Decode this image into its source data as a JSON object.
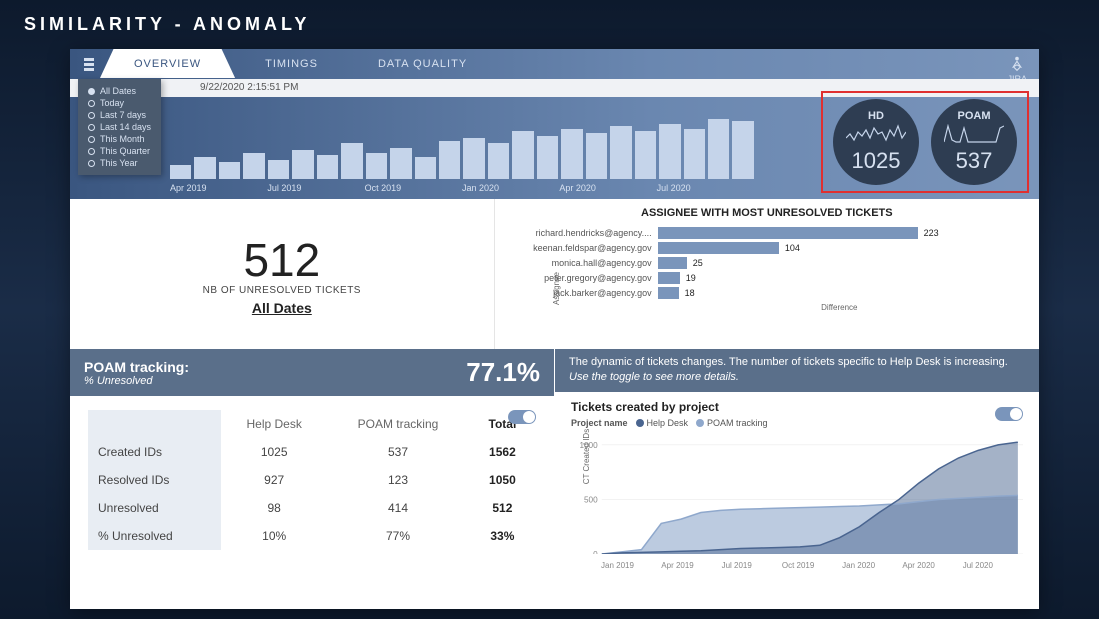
{
  "slide_title": "SIMILARITY - ANOMALY",
  "tabs": {
    "active": "OVERVIEW",
    "items": [
      "OVERVIEW",
      "TIMINGS",
      "DATA QUALITY"
    ]
  },
  "logo_text": "JIRA",
  "date_filter": {
    "selected": "All Dates",
    "options": [
      "All Dates",
      "Today",
      "Last 7 days",
      "Last 14 days",
      "This Month",
      "This Quarter",
      "This Year"
    ]
  },
  "timestamp": "9/22/2020 2:15:51 PM",
  "timeline": {
    "bars": [
      12,
      18,
      14,
      22,
      16,
      24,
      20,
      30,
      22,
      26,
      18,
      32,
      34,
      30,
      40,
      36,
      42,
      38,
      44,
      40,
      46,
      42,
      50,
      48
    ],
    "labels": [
      "Apr 2019",
      "Jul 2019",
      "Oct 2019",
      "Jan 2020",
      "Apr 2020",
      "Jul 2020"
    ]
  },
  "circles": {
    "highlight_color": "#e03030",
    "circle_bg": "#2e3d52",
    "items": [
      {
        "label": "HD",
        "value": "1025",
        "spark": [
          8,
          12,
          6,
          14,
          10,
          16,
          8,
          18,
          12,
          14,
          6,
          16,
          10,
          20,
          8,
          14
        ]
      },
      {
        "label": "POAM",
        "value": "537",
        "spark": [
          4,
          20,
          6,
          4,
          4,
          18,
          4,
          4,
          4,
          4,
          4,
          4,
          4,
          4,
          18,
          20
        ]
      }
    ]
  },
  "kpi": {
    "value": "512",
    "label": "NB OF UNRESOLVED TICKETS",
    "range": "All Dates"
  },
  "assignee_chart": {
    "title": "ASSIGNEE WITH MOST UNRESOLVED TICKETS",
    "y_label": "Assignee",
    "x_label": "Difference",
    "bar_color": "#7a95bb",
    "max": 223,
    "rows": [
      {
        "name": "richard.hendricks@agency....",
        "value": 223
      },
      {
        "name": "keenan.feldspar@agency.gov",
        "value": 104
      },
      {
        "name": "monica.hall@agency.gov",
        "value": 25
      },
      {
        "name": "peter.gregory@agency.gov",
        "value": 19
      },
      {
        "name": "jack.barker@agency.gov",
        "value": 18
      }
    ]
  },
  "poam_banner": {
    "title": "POAM tracking:",
    "sub": "% Unresolved",
    "pct": "77.1%"
  },
  "summary_table": {
    "columns": [
      "",
      "Help Desk",
      "POAM tracking",
      "Total"
    ],
    "rows": [
      [
        "Created IDs",
        "1025",
        "537",
        "1562"
      ],
      [
        "Resolved IDs",
        "927",
        "123",
        "1050"
      ],
      [
        "Unresolved",
        "98",
        "414",
        "512"
      ],
      [
        "% Unresolved",
        "10%",
        "77%",
        "33%"
      ]
    ]
  },
  "dynamic_text": {
    "line1": "The dynamic of tickets changes. The number of tickets specific to Help Desk is increasing.",
    "line2": "Use the toggle to see more details."
  },
  "area_chart": {
    "title": "Tickets created by project",
    "legend_label": "Project name",
    "series": [
      {
        "name": "Help Desk",
        "color": "#4a6590"
      },
      {
        "name": "POAM tracking",
        "color": "#8fa8cc"
      }
    ],
    "y_label": "CT Created IDs",
    "y_ticks": [
      "0",
      "500",
      "1000"
    ],
    "y_max": 1100,
    "x_labels": [
      "Jan 2019",
      "Apr 2019",
      "Jul 2019",
      "Oct 2019",
      "Jan 2020",
      "Apr 2020",
      "Jul 2020"
    ],
    "data": {
      "hd": [
        0,
        10,
        15,
        20,
        25,
        30,
        40,
        50,
        55,
        60,
        65,
        80,
        150,
        250,
        380,
        500,
        650,
        780,
        880,
        950,
        1000,
        1025
      ],
      "poam": [
        0,
        20,
        40,
        280,
        320,
        380,
        400,
        410,
        415,
        420,
        425,
        430,
        435,
        440,
        450,
        460,
        480,
        500,
        510,
        520,
        530,
        537
      ]
    }
  },
  "colors": {
    "header_grad_a": "#3a5680",
    "header_grad_b": "#7a95bb",
    "banner": "#5a6f8a"
  }
}
